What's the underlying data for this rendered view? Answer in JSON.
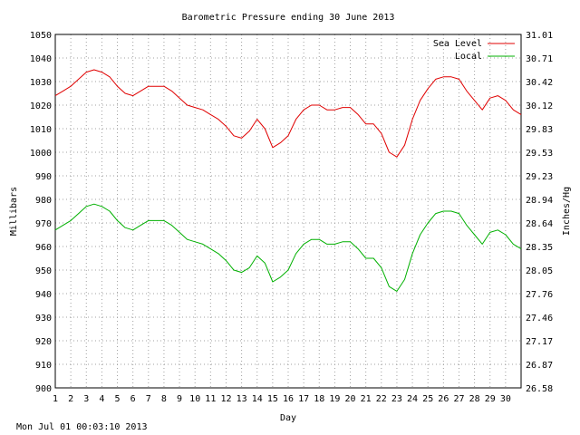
{
  "chart_data": {
    "type": "line",
    "title": "Barometric Pressure ending 30 June 2013",
    "xlabel": "Day",
    "ylabel": "Millibars",
    "y2label": "Inches/Hg",
    "footer": "Mon Jul 01 00:03:10 2013",
    "xlim": [
      1,
      31
    ],
    "ylim": [
      900,
      1050
    ],
    "grid": true,
    "legend_position": "top-right",
    "x_tick_labels": [
      "1",
      "2",
      "3",
      "4",
      "5",
      "6",
      "7",
      "8",
      "9",
      "10",
      "11",
      "12",
      "13",
      "14",
      "15",
      "16",
      "17",
      "18",
      "19",
      "20",
      "21",
      "22",
      "23",
      "24",
      "25",
      "26",
      "27",
      "28",
      "29",
      "30"
    ],
    "y_tick_labels": [
      "900",
      "910",
      "920",
      "930",
      "940",
      "950",
      "960",
      "970",
      "980",
      "990",
      "1000",
      "1010",
      "1020",
      "1030",
      "1040",
      "1050"
    ],
    "y2_tick_labels": [
      "26.58",
      "26.87",
      "27.17",
      "27.46",
      "27.76",
      "28.05",
      "28.35",
      "28.64",
      "28.94",
      "29.23",
      "29.53",
      "29.83",
      "30.12",
      "30.42",
      "30.71",
      "31.01"
    ],
    "series": [
      {
        "name": "Sea Level",
        "color": "#e00000",
        "x": [
          1.0,
          1.5,
          2.0,
          2.5,
          3.0,
          3.5,
          4.0,
          4.5,
          5.0,
          5.5,
          6.0,
          6.5,
          7.0,
          7.5,
          8.0,
          8.5,
          9.0,
          9.5,
          10.0,
          10.5,
          11.0,
          11.5,
          12.0,
          12.5,
          13.0,
          13.5,
          14.0,
          14.5,
          15.0,
          15.5,
          16.0,
          16.5,
          17.0,
          17.5,
          18.0,
          18.5,
          19.0,
          19.5,
          20.0,
          20.5,
          21.0,
          21.5,
          22.0,
          22.5,
          23.0,
          23.5,
          24.0,
          24.5,
          25.0,
          25.5,
          26.0,
          26.5,
          27.0,
          27.5,
          28.0,
          28.5,
          29.0,
          29.5,
          30.0,
          30.5,
          31.0
        ],
        "values": [
          1024,
          1026,
          1028,
          1031,
          1034,
          1035,
          1034,
          1032,
          1028,
          1025,
          1024,
          1026,
          1028,
          1028,
          1028,
          1026,
          1023,
          1020,
          1019,
          1018,
          1016,
          1014,
          1011,
          1007,
          1006,
          1009,
          1014,
          1010,
          1002,
          1004,
          1007,
          1014,
          1018,
          1020,
          1020,
          1018,
          1018,
          1019,
          1019,
          1016,
          1012,
          1012,
          1008,
          1000,
          998,
          1003,
          1014,
          1022,
          1027,
          1031,
          1032,
          1032,
          1031,
          1026,
          1022,
          1018,
          1023,
          1024,
          1022,
          1018,
          1016
        ]
      },
      {
        "name": "Local",
        "color": "#00b000",
        "x": [
          1.0,
          1.5,
          2.0,
          2.5,
          3.0,
          3.5,
          4.0,
          4.5,
          5.0,
          5.5,
          6.0,
          6.5,
          7.0,
          7.5,
          8.0,
          8.5,
          9.0,
          9.5,
          10.0,
          10.5,
          11.0,
          11.5,
          12.0,
          12.5,
          13.0,
          13.5,
          14.0,
          14.5,
          15.0,
          15.5,
          16.0,
          16.5,
          17.0,
          17.5,
          18.0,
          18.5,
          19.0,
          19.5,
          20.0,
          20.5,
          21.0,
          21.5,
          22.0,
          22.5,
          23.0,
          23.5,
          24.0,
          24.5,
          25.0,
          25.5,
          26.0,
          26.5,
          27.0,
          27.5,
          28.0,
          28.5,
          29.0,
          29.5,
          30.0,
          30.5,
          31.0
        ],
        "values": [
          967,
          969,
          971,
          974,
          977,
          978,
          977,
          975,
          971,
          968,
          967,
          969,
          971,
          971,
          971,
          969,
          966,
          963,
          962,
          961,
          959,
          957,
          954,
          950,
          949,
          951,
          956,
          953,
          945,
          947,
          950,
          957,
          961,
          963,
          963,
          961,
          961,
          962,
          962,
          959,
          955,
          955,
          951,
          943,
          941,
          946,
          957,
          965,
          970,
          974,
          975,
          975,
          974,
          969,
          965,
          961,
          966,
          967,
          965,
          961,
          959
        ]
      }
    ]
  }
}
